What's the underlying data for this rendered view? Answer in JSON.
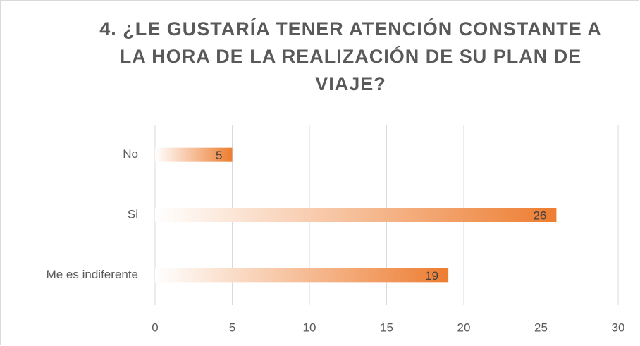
{
  "chart_data": {
    "type": "barh",
    "title": "4. ¿LE GUSTARÍA TENER ATENCIÓN CONSTANTE A LA HORA DE LA REALIZACIÓN DE SU PLAN DE VIAJE?",
    "categories": [
      "No",
      "Si",
      "Me es indiferente"
    ],
    "values": [
      5,
      26,
      19
    ],
    "color": "#ed7d31",
    "xlim": [
      0,
      30
    ],
    "xticks": [
      0,
      5,
      10,
      15,
      20,
      25,
      30
    ],
    "grid": true
  }
}
